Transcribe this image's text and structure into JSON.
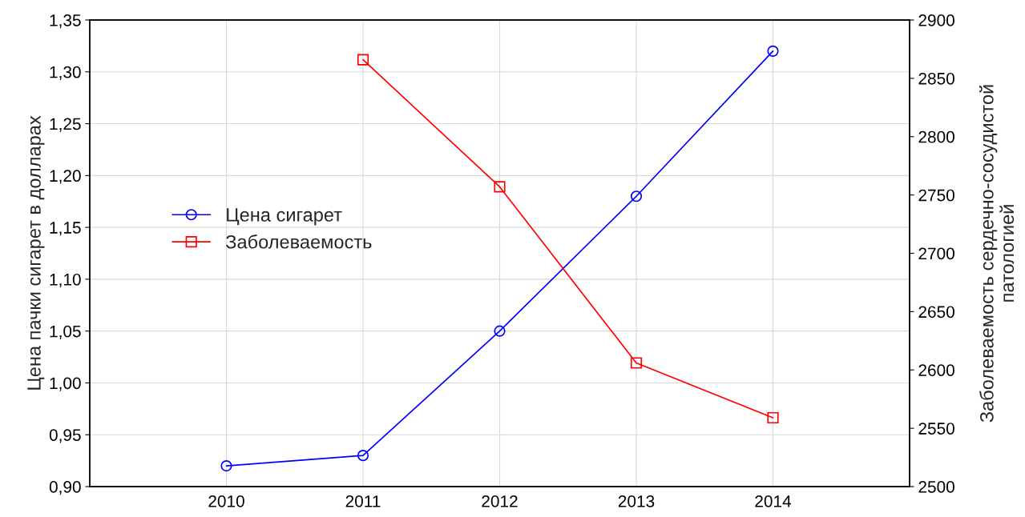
{
  "chart_data": {
    "type": "line",
    "x": [
      2010,
      2011,
      2012,
      2013,
      2014
    ],
    "series": [
      {
        "name": "Цена сигарет",
        "color": "#0000ff",
        "marker": "circle",
        "values": [
          0.92,
          0.93,
          1.05,
          1.18,
          1.32
        ]
      },
      {
        "name": "Заболеваемость",
        "color": "#ff0000",
        "marker": "square",
        "axis": "y2",
        "x": [
          2011,
          2012,
          2013,
          2014
        ],
        "values": [
          2866,
          2757,
          2606,
          2559
        ]
      }
    ],
    "ylabel": "Цена пачки сигарет в долларах",
    "y2label": "Заболеваемость сердечно-сосудистой\nпатологией",
    "xlim": [
      2009,
      2015
    ],
    "xticks": [
      2010,
      2011,
      2012,
      2013,
      2014
    ],
    "ylim": [
      0.9,
      1.35
    ],
    "yticks": [
      {
        "value": 0.9,
        "label": "0,90"
      },
      {
        "value": 0.95,
        "label": "0,95"
      },
      {
        "value": 1.0,
        "label": "1,00"
      },
      {
        "value": 1.05,
        "label": "1,05"
      },
      {
        "value": 1.1,
        "label": "1,10"
      },
      {
        "value": 1.15,
        "label": "1,15"
      },
      {
        "value": 1.2,
        "label": "1,20"
      },
      {
        "value": 1.25,
        "label": "1,25"
      },
      {
        "value": 1.3,
        "label": "1,30"
      },
      {
        "value": 1.35,
        "label": "1,35"
      }
    ],
    "y2lim": [
      2500,
      2900
    ],
    "y2ticks": [
      2500,
      2550,
      2600,
      2650,
      2700,
      2750,
      2800,
      2850,
      2900
    ],
    "grid": true,
    "legend": "center left",
    "line_style": "solid"
  }
}
